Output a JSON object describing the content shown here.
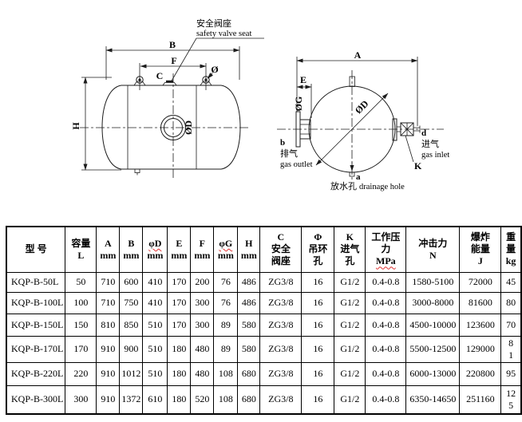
{
  "diagram_left": {
    "callout_cn": "安全阀座",
    "callout_en": "safety valve seat",
    "dim_b": "B",
    "dim_f": "F",
    "dim_c": "C",
    "dim_phi": "Ø",
    "dim_h": "H",
    "dim_od": "ØD"
  },
  "diagram_right": {
    "dim_a": "A",
    "dim_e": "E",
    "dim_og": "ØG",
    "dim_od": "ØD",
    "outlet_letter": "b",
    "outlet_cn": "排气",
    "outlet_en": "gas outlet",
    "inlet_letter": "d",
    "inlet_cn": "进气",
    "inlet_en": "gas inlet",
    "valve_label": "K",
    "drain_letter": "a",
    "drain_cn": "放水孔",
    "drain_en": "drainage hole"
  },
  "table": {
    "header": [
      {
        "lines": [
          "型  号"
        ]
      },
      {
        "lines": [
          "容量",
          "L"
        ]
      },
      {
        "lines": [
          "A",
          "mm"
        ]
      },
      {
        "lines": [
          "B",
          "mm"
        ]
      },
      {
        "lines": [
          "φD",
          "mm"
        ],
        "wavy": 0
      },
      {
        "lines": [
          "E",
          "mm"
        ]
      },
      {
        "lines": [
          "F",
          "mm"
        ]
      },
      {
        "lines": [
          "φG",
          "mm"
        ],
        "wavy": 0
      },
      {
        "lines": [
          "H",
          "mm"
        ]
      },
      {
        "lines": [
          "C",
          "安全",
          "阀座"
        ]
      },
      {
        "lines": [
          "Φ",
          "吊环",
          "孔"
        ]
      },
      {
        "lines": [
          "K",
          "进气",
          "孔"
        ]
      },
      {
        "lines": [
          "工作压",
          "力",
          "MPa"
        ],
        "wavy": 2
      },
      {
        "lines": [
          "冲击力",
          "N"
        ]
      },
      {
        "lines": [
          "爆炸",
          "能量",
          "J"
        ]
      },
      {
        "lines": [
          "重",
          "量",
          "kg"
        ]
      }
    ],
    "rows": [
      [
        "KQP-B-50L",
        "50",
        "710",
        "600",
        "410",
        "170",
        "200",
        "76",
        "486",
        "ZG3/8",
        "16",
        "G1/2",
        "0.4-0.8",
        "1580-5100",
        "72000",
        "45"
      ],
      [
        "KQP-B-100L",
        "100",
        "710",
        "750",
        "410",
        "170",
        "300",
        "76",
        "486",
        "ZG3/8",
        "16",
        "G1/2",
        "0.4-0.8",
        "3000-8000",
        "81600",
        "80"
      ],
      [
        "KQP-B-150L",
        "150",
        "810",
        "850",
        "510",
        "170",
        "300",
        "89",
        "580",
        "ZG3/8",
        "16",
        "G1/2",
        "0.4-0.8",
        "4500-10000",
        "123600",
        "70"
      ],
      [
        "KQP-B-170L",
        "170",
        "910",
        "900",
        "510",
        "180",
        "480",
        "89",
        "580",
        "ZG3/8",
        "16",
        "G1/2",
        "0.4-0.8",
        "5500-12500",
        "129000",
        "8\n1"
      ],
      [
        "KQP-B-220L",
        "220",
        "910",
        "1012",
        "510",
        "180",
        "480",
        "108",
        "680",
        "ZG3/8",
        "16",
        "G1/2",
        "0.4-0.8",
        "6000-13000",
        "220800",
        "95"
      ],
      [
        "KQP-B-300L",
        "300",
        "910",
        "1372",
        "610",
        "180",
        "520",
        "108",
        "680",
        "ZG3/8",
        "16",
        "G1/2",
        "0.4-0.8",
        "6350-14650",
        "251160",
        "12\n5"
      ]
    ]
  }
}
